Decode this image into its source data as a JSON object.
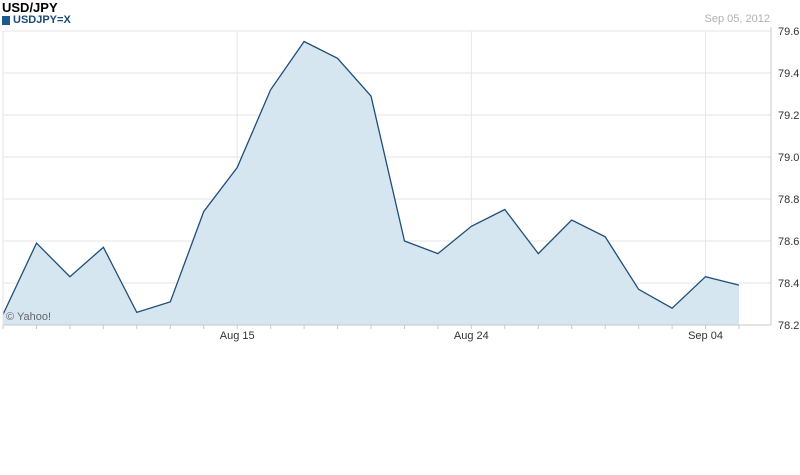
{
  "header": {
    "title": "USD/JPY",
    "series_label": "USDJPY=X",
    "date": "Sep 05, 2012"
  },
  "watermark": "© Yahoo!",
  "colors": {
    "line": "#1f4e79",
    "fill": "#d6e6f1",
    "grid": "#e6e6e6",
    "axis": "#c8c8c8"
  },
  "chart_data": {
    "type": "area",
    "title": "USD/JPY",
    "series": [
      {
        "name": "USDJPY=X",
        "values": [
          78.25,
          78.59,
          78.43,
          78.57,
          78.26,
          78.31,
          78.74,
          78.95,
          79.32,
          79.55,
          79.47,
          79.29,
          78.6,
          78.54,
          78.67,
          78.75,
          78.54,
          78.7,
          78.62,
          78.37,
          78.28,
          78.43,
          78.39
        ]
      }
    ],
    "x_tick_labels": [
      {
        "label": "Aug 15",
        "index": 7
      },
      {
        "label": "Aug 24",
        "index": 14
      },
      {
        "label": "Sep 04",
        "index": 21
      }
    ],
    "y_ticks": [
      "79.6",
      "79.4",
      "79.2",
      "79.0",
      "78.8",
      "78.6",
      "78.4",
      "78.2"
    ],
    "ylim": [
      78.2,
      79.6
    ],
    "grid": true,
    "y_axis_position": "right"
  }
}
